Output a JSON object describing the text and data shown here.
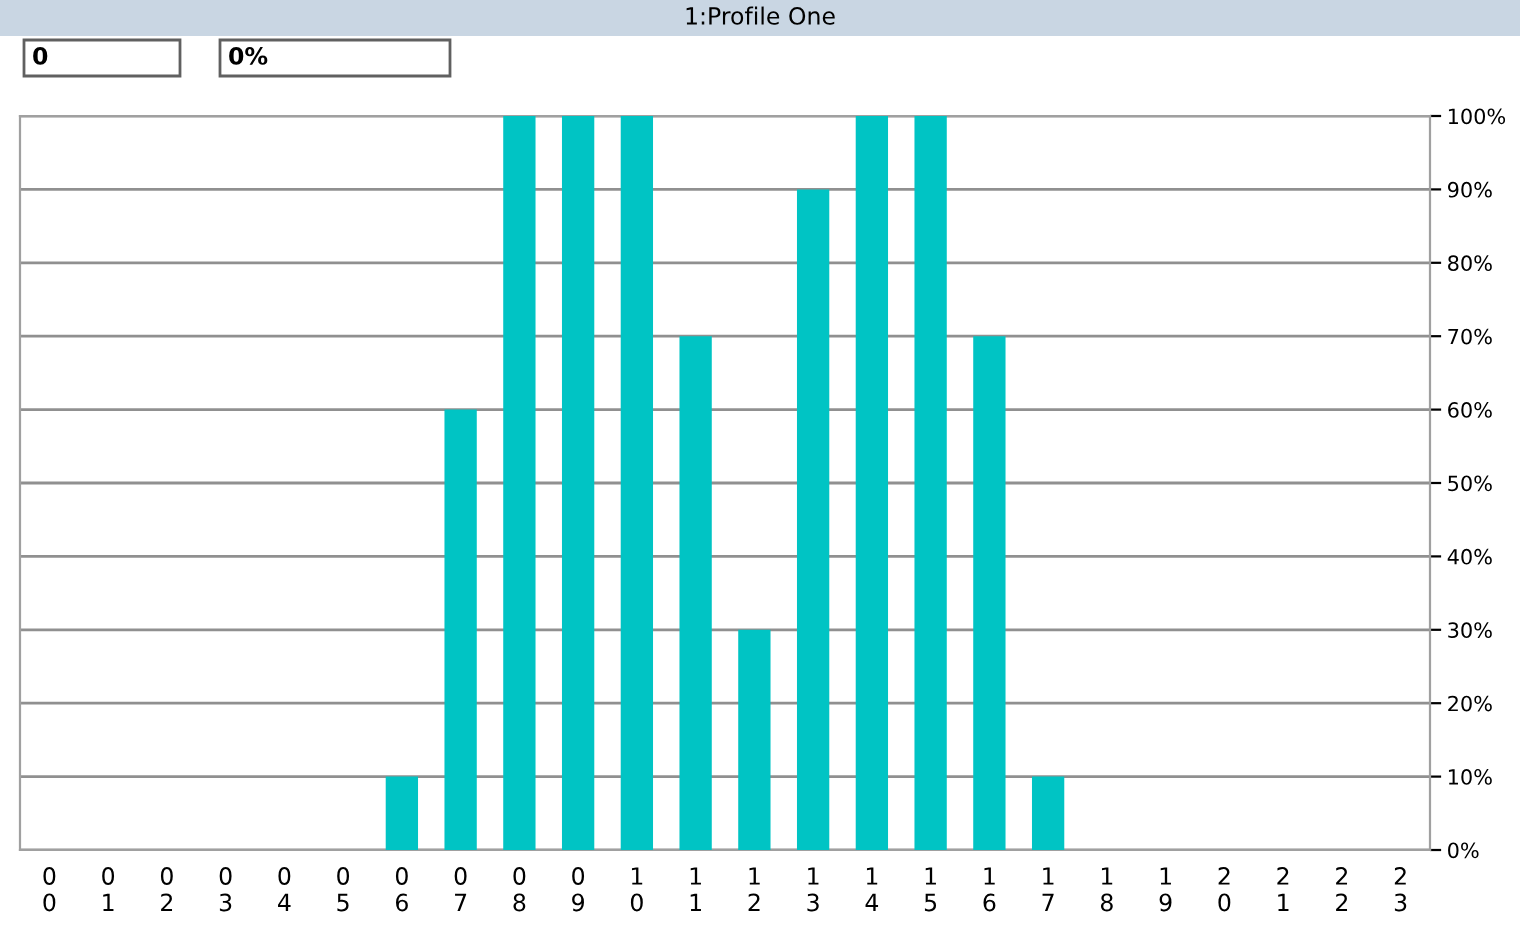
{
  "chart_data": {
    "type": "bar",
    "title": "1:Profile One",
    "annotations": [
      "0",
      "0%"
    ],
    "categories": [
      "00",
      "01",
      "02",
      "03",
      "04",
      "05",
      "06",
      "07",
      "08",
      "09",
      "10",
      "11",
      "12",
      "13",
      "14",
      "15",
      "16",
      "17",
      "18",
      "19",
      "20",
      "21",
      "22",
      "23"
    ],
    "values": [
      0,
      0,
      0,
      0,
      0,
      0,
      10,
      60,
      100,
      100,
      100,
      70,
      30,
      90,
      100,
      100,
      70,
      10,
      0,
      0,
      0,
      0,
      0,
      0
    ],
    "color": "#00c4c4",
    "ylim": [
      0,
      100
    ],
    "yticks": [
      {
        "value": 0,
        "label": "0%"
      },
      {
        "value": 10,
        "label": "10%"
      },
      {
        "value": 20,
        "label": "20%"
      },
      {
        "value": 30,
        "label": "30%"
      },
      {
        "value": 40,
        "label": "40%"
      },
      {
        "value": 50,
        "label": "50%"
      },
      {
        "value": 60,
        "label": "60%"
      },
      {
        "value": 70,
        "label": "70%"
      },
      {
        "value": 80,
        "label": "80%"
      },
      {
        "value": 90,
        "label": "90%"
      },
      {
        "value": 100,
        "label": "100%"
      }
    ],
    "grid": "y"
  }
}
